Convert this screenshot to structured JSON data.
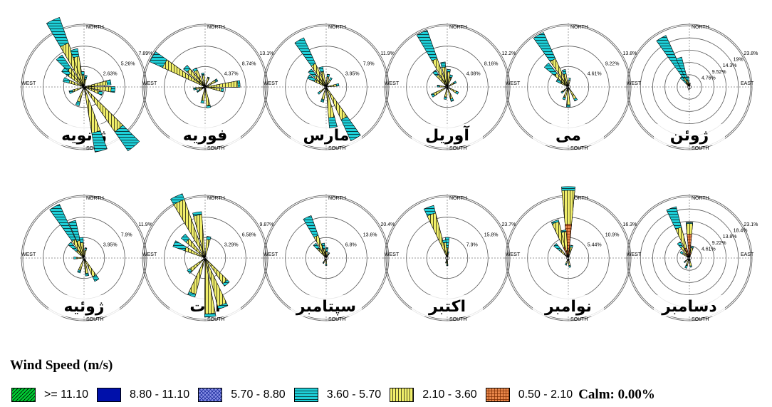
{
  "chart_data": {
    "type": "windrose",
    "direction_labels": {
      "north": "NORTH",
      "south": "SOUTH",
      "west": "WEST",
      "east": "EAST"
    },
    "bins": [
      {
        "label": ">= 11.10",
        "color": "#00cc33",
        "pattern": "diagonal-hatch"
      },
      {
        "label": "8.80 - 11.10",
        "color": "#0010aa",
        "pattern": "solid"
      },
      {
        "label": "5.70 - 8.80",
        "color": "#4a55d8",
        "pattern": "crosshatch"
      },
      {
        "label": "3.60 - 5.70",
        "color": "#1ecfd8",
        "pattern": "horizontal-lines"
      },
      {
        "label": "2.10 - 3.60",
        "color": "#f0ee6a",
        "pattern": "vertical-lines"
      },
      {
        "label": "0.50 - 2.10",
        "color": "#e8864a",
        "pattern": "grid"
      }
    ],
    "calm": "Calm: 0.00%",
    "months": [
      {
        "name": "ژانویه",
        "rings": [
          "2.63%",
          "5.26%",
          "7.89%"
        ],
        "show_east": false,
        "petals": [
          {
            "deg": -25,
            "s2": 6.0,
            "s3": 9.5
          },
          {
            "deg": -40,
            "s2": 3.0,
            "s3": 5.0
          },
          {
            "deg": -50,
            "s2": 2.5,
            "s3": 3.5
          },
          {
            "deg": -70,
            "s2": 2.0,
            "s3": 2.8
          },
          {
            "deg": -15,
            "s2": 4.0,
            "s3": 5.0
          },
          {
            "deg": -5,
            "s2": 1.5,
            "s3": 2.0
          },
          {
            "deg": 10,
            "s2": 1.0,
            "s3": 1.5
          },
          {
            "deg": 80,
            "s2": 3.0,
            "s3": 3.5
          },
          {
            "deg": 95,
            "s2": 3.5,
            "s3": 4.0
          },
          {
            "deg": 110,
            "s2": 2.0,
            "s3": 2.5
          },
          {
            "deg": 140,
            "s2": 7.0,
            "s3": 10.0
          },
          {
            "deg": 165,
            "s2": 6.0,
            "s3": 8.5
          },
          {
            "deg": 200,
            "s2": 2.0,
            "s3": 2.5
          },
          {
            "deg": 250,
            "s2": 1.5,
            "s3": 2.0
          }
        ]
      },
      {
        "name": "فوریه",
        "rings": [
          "4.37%",
          "8.74%",
          "13.1%"
        ],
        "show_east": false,
        "petals": [
          {
            "deg": -60,
            "s2": 10.0,
            "s3": 13.0
          },
          {
            "deg": -45,
            "s2": 5.0,
            "s3": 6.0
          },
          {
            "deg": -30,
            "s2": 4.0,
            "s3": 4.5
          },
          {
            "deg": -10,
            "s2": 2.5,
            "s3": 3.0
          },
          {
            "deg": 20,
            "s2": 2.0,
            "s3": 2.2
          },
          {
            "deg": 60,
            "s2": 2.5,
            "s3": 3.0
          },
          {
            "deg": 85,
            "s2": 7.0,
            "s3": 7.5
          },
          {
            "deg": 100,
            "s2": 3.5,
            "s3": 4.0
          },
          {
            "deg": 170,
            "s2": 4.0,
            "s3": 4.5
          },
          {
            "deg": 190,
            "s2": 3.0,
            "s3": 3.5
          },
          {
            "deg": 240,
            "s2": 1.5,
            "s3": 2.0
          },
          {
            "deg": 260,
            "s2": 2.0,
            "s3": 2.5
          }
        ]
      },
      {
        "name": "مارس",
        "rings": [
          "3.95%",
          "7.9%",
          "11.9%"
        ],
        "show_east": false,
        "petals": [
          {
            "deg": -30,
            "s2": 5.0,
            "s3": 10.5
          },
          {
            "deg": -45,
            "s2": 3.0,
            "s3": 4.5
          },
          {
            "deg": -60,
            "s2": 2.5,
            "s3": 4.0
          },
          {
            "deg": -15,
            "s2": 3.0,
            "s3": 4.0
          },
          {
            "deg": 10,
            "s2": 2.0,
            "s3": 2.5
          },
          {
            "deg": 30,
            "s2": 1.5,
            "s3": 2.0
          },
          {
            "deg": 80,
            "s2": 2.0,
            "s3": 2.5
          },
          {
            "deg": 150,
            "s2": 7.0,
            "s3": 11.5
          },
          {
            "deg": 170,
            "s2": 6.0,
            "s3": 8.0
          },
          {
            "deg": 195,
            "s2": 2.5,
            "s3": 3.0
          },
          {
            "deg": 230,
            "s2": 1.5,
            "s3": 2.0
          }
        ]
      },
      {
        "name": "آوریل",
        "rings": [
          "4.08%",
          "8.16%",
          "12.2%"
        ],
        "show_east": false,
        "petals": [
          {
            "deg": -25,
            "s2": 6.0,
            "s3": 12.0
          },
          {
            "deg": -40,
            "s2": 3.0,
            "s3": 4.0
          },
          {
            "deg": -10,
            "s2": 4.0,
            "s3": 5.0
          },
          {
            "deg": 5,
            "s2": 3.0,
            "s3": 3.5
          },
          {
            "deg": 20,
            "s2": 2.0,
            "s3": 2.5
          },
          {
            "deg": 60,
            "s2": 1.5,
            "s3": 2.0
          },
          {
            "deg": 120,
            "s2": 2.0,
            "s3": 2.5
          },
          {
            "deg": 160,
            "s2": 2.5,
            "s3": 3.0
          },
          {
            "deg": 190,
            "s2": 2.0,
            "s3": 2.5
          },
          {
            "deg": 240,
            "s2": 3.0,
            "s3": 3.5
          },
          {
            "deg": 275,
            "s2": 1.5,
            "s3": 2.0
          }
        ]
      },
      {
        "name": "می",
        "rings": [
          "4.61%",
          "9.22%",
          "13.8%"
        ],
        "show_east": false,
        "petals": [
          {
            "deg": -30,
            "s2": 7.0,
            "s3": 13.5
          },
          {
            "deg": -45,
            "s2": 4.0,
            "s3": 7.0
          },
          {
            "deg": -15,
            "s2": 3.0,
            "s3": 4.0
          },
          {
            "deg": -60,
            "s2": 2.0,
            "s3": 3.0
          },
          {
            "deg": 10,
            "s2": 1.5,
            "s3": 2.0
          },
          {
            "deg": 150,
            "s2": 3.0,
            "s3": 3.5
          },
          {
            "deg": 180,
            "s2": 4.0,
            "s3": 4.5
          },
          {
            "deg": 200,
            "s2": 2.5,
            "s3": 3.0
          },
          {
            "deg": 230,
            "s2": 1.5,
            "s3": 2.0
          }
        ]
      },
      {
        "name": "ژوئن",
        "rings": [
          "4.76%",
          "9.52%",
          "14.3%",
          "19%",
          "23.8%"
        ],
        "show_east": true,
        "petals": [
          {
            "deg": -30,
            "s2": 4.0,
            "s3": 22.0
          },
          {
            "deg": -20,
            "s2": 3.0,
            "s3": 12.0
          },
          {
            "deg": -40,
            "s2": 2.0,
            "s3": 5.0
          },
          {
            "deg": -10,
            "s2": 2.0,
            "s3": 4.0
          },
          {
            "deg": 10,
            "s2": 1.0,
            "s3": 1.5
          },
          {
            "deg": 190,
            "s2": 1.0,
            "s3": 1.2
          }
        ]
      },
      {
        "name": "ژوئیه",
        "rings": [
          "3.95%",
          "7.9%",
          "11.9%"
        ],
        "show_east": false,
        "petals": [
          {
            "deg": -30,
            "s2": 4.0,
            "s3": 11.5
          },
          {
            "deg": -18,
            "s2": 3.5,
            "s3": 7.5
          },
          {
            "deg": -45,
            "s2": 2.0,
            "s3": 4.0
          },
          {
            "deg": -8,
            "s2": 3.0,
            "s3": 4.0
          },
          {
            "deg": 10,
            "s2": 1.5,
            "s3": 2.0
          },
          {
            "deg": 150,
            "s2": 4.0,
            "s3": 5.0
          },
          {
            "deg": 170,
            "s2": 3.0,
            "s3": 3.5
          },
          {
            "deg": 200,
            "s2": 2.5,
            "s3": 3.0
          },
          {
            "deg": 270,
            "s2": 1.5,
            "s3": 2.0
          }
        ]
      },
      {
        "name": "اوت",
        "rings": [
          "3.29%",
          "6.58%",
          "9.87%"
        ],
        "show_east": false,
        "petals": [
          {
            "deg": -25,
            "s2": 10.0,
            "s3": 11.0
          },
          {
            "deg": -10,
            "s2": 7.0,
            "s3": 7.5
          },
          {
            "deg": -45,
            "s2": 4.0,
            "s3": 5.0
          },
          {
            "deg": -65,
            "s2": 3.5,
            "s3": 5.5
          },
          {
            "deg": 10,
            "s2": 3.0,
            "s3": 3.5
          },
          {
            "deg": 140,
            "s2": 5.0,
            "s3": 5.5
          },
          {
            "deg": 160,
            "s2": 8.0,
            "s3": 8.5
          },
          {
            "deg": 175,
            "s2": 9.0,
            "s3": 9.5
          },
          {
            "deg": 200,
            "s2": 6.0,
            "s3": 6.5
          },
          {
            "deg": 230,
            "s2": 3.0,
            "s3": 3.5
          }
        ]
      },
      {
        "name": "سپتامبر",
        "rings": [
          "6.8%",
          "13.6%",
          "20.4%"
        ],
        "show_east": false,
        "petals": [
          {
            "deg": -25,
            "s2": 8.0,
            "s3": 15.0
          },
          {
            "deg": -40,
            "s2": 4.0,
            "s3": 6.0
          },
          {
            "deg": -12,
            "s2": 3.0,
            "s3": 5.0
          },
          {
            "deg": 5,
            "s2": 2.0,
            "s3": 3.5
          },
          {
            "deg": 30,
            "s2": 1.5,
            "s3": 2.0
          },
          {
            "deg": 180,
            "s2": 2.0,
            "s3": 2.5
          },
          {
            "deg": 210,
            "s2": 1.5,
            "s3": 2.0
          }
        ]
      },
      {
        "name": "اکتبر",
        "rings": [
          "7.9%",
          "15.8%",
          "23.7%"
        ],
        "show_east": false,
        "petals": [
          {
            "deg": -20,
            "s2": 18.0,
            "s3": 21.0
          },
          {
            "deg": -10,
            "s2": 6.0,
            "s3": 7.0
          },
          {
            "deg": 0,
            "s2": 4.0,
            "s3": 8.0
          },
          {
            "deg": 10,
            "s2": 2.0,
            "s3": 2.5
          },
          {
            "deg": 180,
            "s2": 2.5,
            "s3": 3.0
          },
          {
            "deg": 195,
            "s2": 1.5,
            "s3": 2.0
          }
        ]
      },
      {
        "name": "نوامبر",
        "rings": [
          "5.44%",
          "10.9%",
          "16.3%"
        ],
        "show_east": false,
        "petals": [
          {
            "deg": 0,
            "s1": 9.0,
            "s2": 18.0,
            "s3": 19.0
          },
          {
            "deg": -20,
            "s1": 3.0,
            "s2": 10.0,
            "s3": 10.5
          },
          {
            "deg": -10,
            "s1": 2.0,
            "s2": 7.0,
            "s3": 7.5
          },
          {
            "deg": -45,
            "s1": 1.0,
            "s2": 3.0,
            "s3": 5.0
          },
          {
            "deg": 15,
            "s1": 1.0,
            "s2": 3.0,
            "s3": 3.5
          },
          {
            "deg": 170,
            "s1": 0.5,
            "s2": 2.0,
            "s3": 2.5
          },
          {
            "deg": 200,
            "s1": 0.5,
            "s2": 1.5,
            "s3": 2.0
          }
        ]
      },
      {
        "name": "دسامبر",
        "rings": [
          "4.61%",
          "9.22%",
          "13.8%",
          "18.4%",
          "23.1%"
        ],
        "show_east": true,
        "petals": [
          {
            "deg": -20,
            "s1": 4.0,
            "s2": 12.0,
            "s3": 20.0
          },
          {
            "deg": 0,
            "s1": 9.0,
            "s2": 13.0,
            "s3": 13.5
          },
          {
            "deg": -35,
            "s1": 2.0,
            "s2": 5.0,
            "s3": 7.0
          },
          {
            "deg": -55,
            "s1": 1.0,
            "s2": 3.0,
            "s3": 4.0
          },
          {
            "deg": 15,
            "s1": 2.0,
            "s2": 4.0,
            "s3": 4.5
          },
          {
            "deg": 170,
            "s1": 1.0,
            "s2": 3.0,
            "s3": 3.5
          },
          {
            "deg": 200,
            "s1": 1.0,
            "s2": 3.0,
            "s3": 4.0
          },
          {
            "deg": 230,
            "s1": 0.5,
            "s2": 2.0,
            "s3": 2.5
          }
        ]
      }
    ]
  },
  "legend": {
    "title": "Wind Speed (m/s)",
    "items": [
      {
        "label": ">= 11.10"
      },
      {
        "label": "8.80 - 11.10"
      },
      {
        "label": "5.70 - 8.80"
      },
      {
        "label": "3.60 - 5.70"
      },
      {
        "label": "2.10 - 3.60"
      },
      {
        "label": "0.50 - 2.10"
      }
    ],
    "calm": "Calm: 0.00%"
  }
}
